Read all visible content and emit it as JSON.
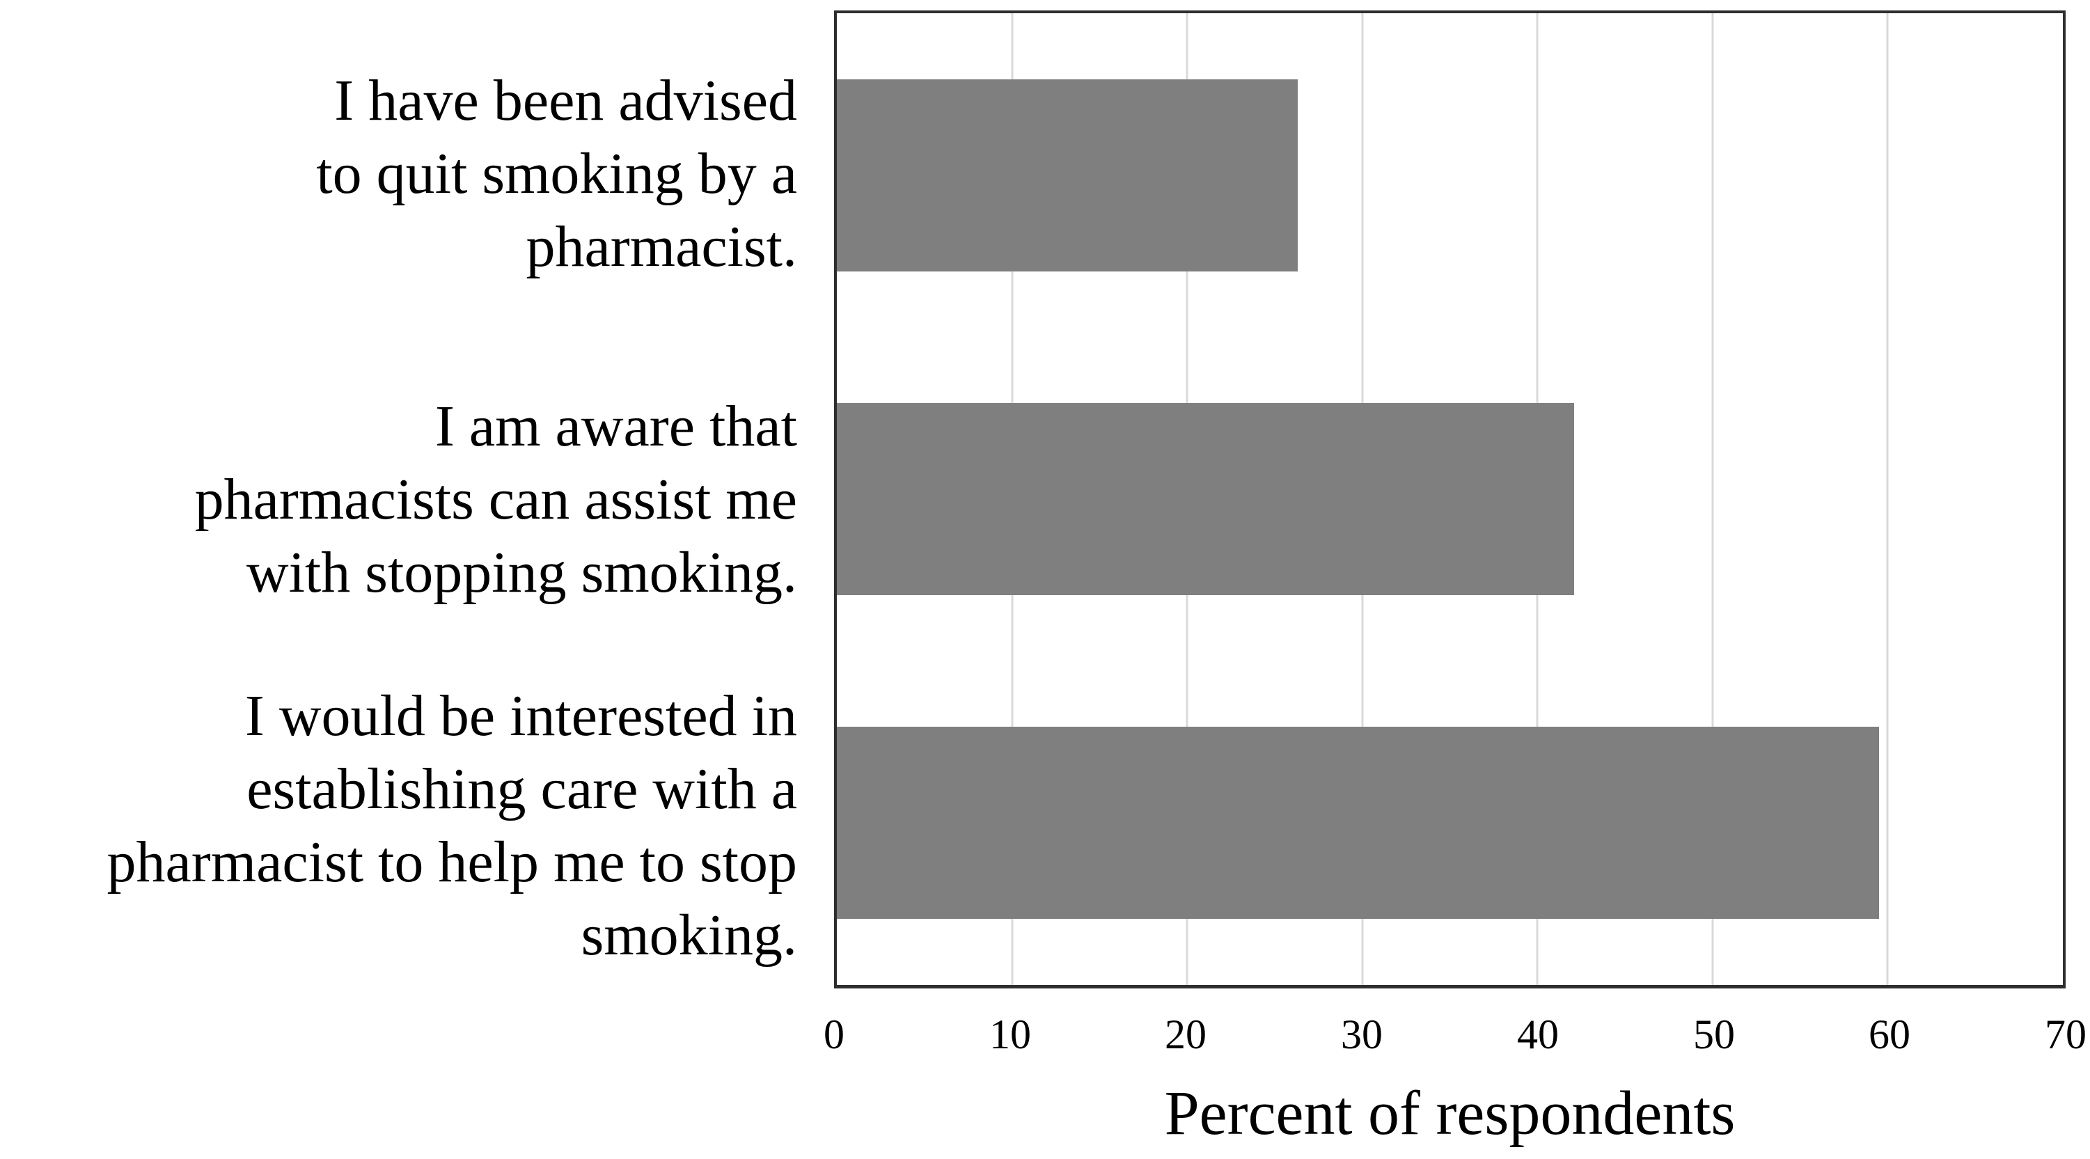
{
  "chart_data": {
    "type": "bar",
    "orientation": "horizontal",
    "title": "",
    "categories": [
      [
        "I have been advised",
        "to quit smoking by a",
        "pharmacist."
      ],
      [
        "I am aware that",
        "pharmacists can assist me",
        "with stopping smoking."
      ],
      [
        "I would be interested in",
        "establishing care with a",
        "pharmacist to help me to stop",
        "smoking."
      ]
    ],
    "values": [
      26.3,
      42.1,
      59.5
    ],
    "xlabel": "Percent of respondents",
    "ylabel": "",
    "x_ticks": [
      "0",
      "10",
      "20",
      "30",
      "40",
      "50",
      "60",
      "70"
    ],
    "xlim": [
      0,
      70
    ],
    "grid": "vertical",
    "legend": "none",
    "colors": {
      "bar": "#7f7f7f",
      "gridline": "#d9d9d9",
      "plot_border": "#2e2e2e",
      "text": "#000000",
      "background": "#ffffff"
    }
  }
}
